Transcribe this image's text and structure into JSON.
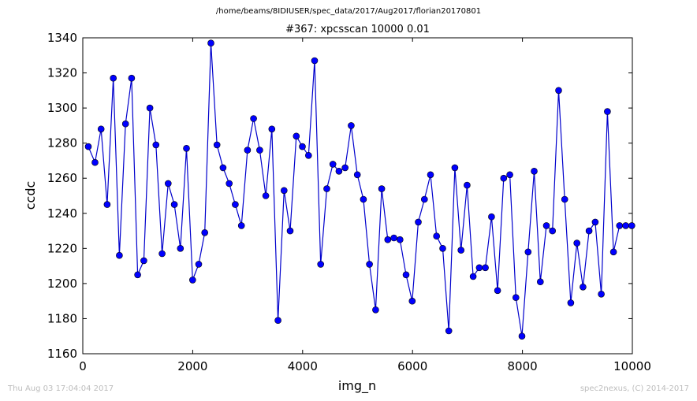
{
  "header": {
    "suptitle": "/home/beams/8IDIUSER/spec_data/2017/Aug2017/florian20170801",
    "plot_title": "#367: xpcsscan 10000 0.01"
  },
  "footer": {
    "timestamp": "Thu Aug 03 17:04:04 2017",
    "credit": "spec2nexus, (C) 2014-2017"
  },
  "colors": {
    "series": "#0000cc",
    "marker_fill": "#0000ff"
  },
  "chart_data": {
    "type": "line",
    "title": "#367: xpcsscan 10000 0.01",
    "xlabel": "img_n",
    "ylabel": "ccdc",
    "xlim": [
      0,
      10000
    ],
    "ylim": [
      1160,
      1340
    ],
    "xticks": [
      0,
      2000,
      4000,
      6000,
      8000,
      10000
    ],
    "yticks": [
      1160,
      1180,
      1200,
      1220,
      1240,
      1260,
      1280,
      1300,
      1320,
      1340
    ],
    "grid": false,
    "marker": "circle",
    "series": [
      {
        "x": [
          100,
          222,
          333,
          444,
          555,
          666,
          777,
          888,
          999,
          1110,
          1221,
          1332,
          1443,
          1554,
          1665,
          1776,
          1887,
          1998,
          2109,
          2220,
          2331,
          2442,
          2553,
          2664,
          2775,
          2886,
          2997,
          3108,
          3219,
          3330,
          3441,
          3552,
          3663,
          3774,
          3885,
          3996,
          4107,
          4218,
          4329,
          4440,
          4551,
          4662,
          4773,
          4884,
          4995,
          5106,
          5217,
          5328,
          5439,
          5550,
          5661,
          5772,
          5883,
          5994,
          6105,
          6216,
          6327,
          6438,
          6549,
          6660,
          6771,
          6882,
          6993,
          7104,
          7215,
          7326,
          7437,
          7548,
          7659,
          7770,
          7881,
          7992,
          8103,
          8214,
          8325,
          8436,
          8547,
          8658,
          8769,
          8880,
          8991,
          9102,
          9213,
          9324,
          9435,
          9546,
          9657,
          9768,
          9879,
          9990
        ],
        "y": [
          1278,
          1269,
          1288,
          1245,
          1317,
          1216,
          1291,
          1317,
          1205,
          1213,
          1300,
          1279,
          1217,
          1257,
          1245,
          1220,
          1277,
          1202,
          1211,
          1229,
          1337,
          1279,
          1266,
          1257,
          1245,
          1233,
          1276,
          1294,
          1276,
          1250,
          1288,
          1179,
          1253,
          1230,
          1284,
          1278,
          1273,
          1327,
          1211,
          1254,
          1268,
          1264,
          1266,
          1290,
          1262,
          1248,
          1211,
          1185,
          1254,
          1225,
          1226,
          1225,
          1205,
          1190,
          1235,
          1248,
          1262,
          1227,
          1220,
          1173,
          1266,
          1219,
          1256,
          1204,
          1209,
          1209,
          1238,
          1196,
          1260,
          1262,
          1192,
          1170,
          1218,
          1264,
          1201,
          1233,
          1230,
          1310,
          1248,
          1189,
          1223,
          1198,
          1230,
          1235,
          1194,
          1298,
          1218,
          1233,
          1233,
          1233
        ]
      }
    ]
  }
}
